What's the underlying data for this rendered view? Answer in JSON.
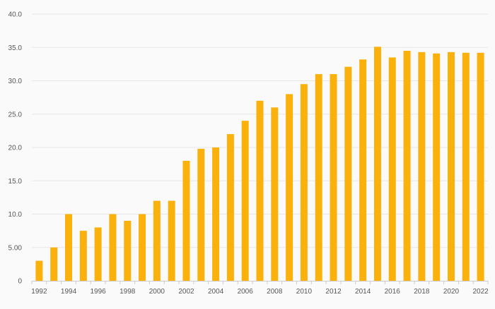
{
  "chart_data": {
    "type": "bar",
    "categories": [
      "1992",
      "1993",
      "1994",
      "1995",
      "1996",
      "1997",
      "1998",
      "1999",
      "2000",
      "2001",
      "2002",
      "2003",
      "2004",
      "2005",
      "2006",
      "2007",
      "2008",
      "2009",
      "2010",
      "2011",
      "2012",
      "2013",
      "2014",
      "2015",
      "2016",
      "2017",
      "2018",
      "2019",
      "2020",
      "2021",
      "2022"
    ],
    "x_tick_labels": [
      "1992",
      "1994",
      "1996",
      "1998",
      "2000",
      "2002",
      "2004",
      "2006",
      "2008",
      "2010",
      "2012",
      "2014",
      "2016",
      "2018",
      "2020",
      "2022"
    ],
    "values": [
      3,
      5,
      10,
      7.5,
      8,
      10,
      9,
      10,
      12,
      12,
      18,
      19.8,
      20,
      22,
      24,
      27,
      26,
      28,
      29.5,
      31,
      31,
      32.1,
      33.2,
      35.1,
      33.5,
      34.5,
      34.3,
      34.1,
      34.3,
      34.2,
      34.2
    ],
    "y_ticks": [
      "0",
      "5.00",
      "10.0",
      "15.0",
      "20.0",
      "25.0",
      "30.0",
      "35.0",
      "40.0"
    ],
    "ylim": [
      0,
      40
    ],
    "title": "",
    "xlabel": "",
    "ylabel": "",
    "grid": true,
    "colors": {
      "bar": "#FBB10B",
      "grid": "#e6e6e6",
      "axis": "#cccccc",
      "text": "#555555",
      "background": "#fafafa"
    }
  }
}
